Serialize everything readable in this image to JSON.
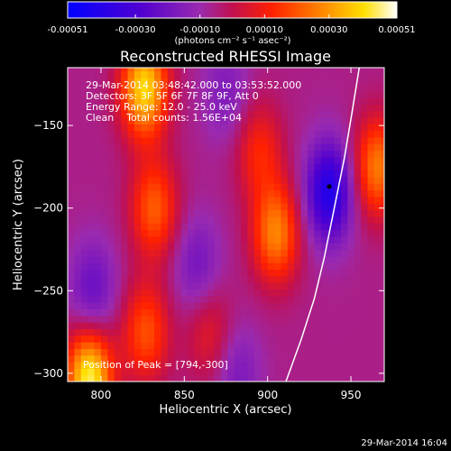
{
  "colorbar": {
    "ticks": [
      "-0.00051",
      "-0.00030",
      "-0.00010",
      "0.00010",
      "0.00030",
      "0.00051"
    ],
    "units": "(photons cm⁻² s⁻¹ asec⁻²)",
    "range": [
      -0.00051,
      0.00051
    ]
  },
  "title": "Reconstructed RHESSI Image",
  "info": {
    "time_range": "29-Mar-2014 03:48:42.000 to 03:53:52.000",
    "detectors": "Detectors: 3F 5F 6F 7F 8F 9F, Att 0",
    "energy_range": "Energy Range: 12.0 - 25.0 keV",
    "clean_counts": "Clean    Total counts: 1.56E+04"
  },
  "peak_text": "Position of Peak = [794,-300]",
  "timestamp": "29-Mar-2014 16:04",
  "chart_data": {
    "type": "heatmap",
    "title": "Reconstructed RHESSI Image",
    "xlabel": "Heliocentric X (arcsec)",
    "ylabel": "Heliocentric Y (arcsec)",
    "xlim": [
      780,
      970
    ],
    "ylim": [
      -305,
      -115
    ],
    "x_ticks": [
      800,
      850,
      900,
      950
    ],
    "y_ticks": [
      -150,
      -200,
      -250,
      -300
    ],
    "peak_position": [
      794,
      -300
    ],
    "marker_position": [
      937,
      -187
    ],
    "limb_curve": [
      [
        911,
        -305
      ],
      [
        920,
        -280
      ],
      [
        928,
        -255
      ],
      [
        934,
        -230
      ],
      [
        940,
        -200
      ],
      [
        946,
        -170
      ],
      [
        951,
        -140
      ],
      [
        955,
        -115
      ]
    ],
    "blobs": [
      {
        "x": 793,
        "y": -303,
        "value": 0.00051
      },
      {
        "x": 826,
        "y": -127,
        "value": 0.00046
      },
      {
        "x": 832,
        "y": -200,
        "value": 0.00027
      },
      {
        "x": 827,
        "y": -275,
        "value": 0.00025
      },
      {
        "x": 865,
        "y": -275,
        "value": 0.00014
      },
      {
        "x": 905,
        "y": -215,
        "value": 0.00033
      },
      {
        "x": 895,
        "y": -165,
        "value": 0.00018
      },
      {
        "x": 966,
        "y": -175,
        "value": 0.00032
      },
      {
        "x": 937,
        "y": -190,
        "value": -0.00036
      },
      {
        "x": 795,
        "y": -250,
        "value": -0.00017
      },
      {
        "x": 858,
        "y": -235,
        "value": -0.00014
      },
      {
        "x": 875,
        "y": -130,
        "value": -0.00011
      },
      {
        "x": 882,
        "y": -300,
        "value": -0.00012
      }
    ],
    "background": -6e-05
  }
}
